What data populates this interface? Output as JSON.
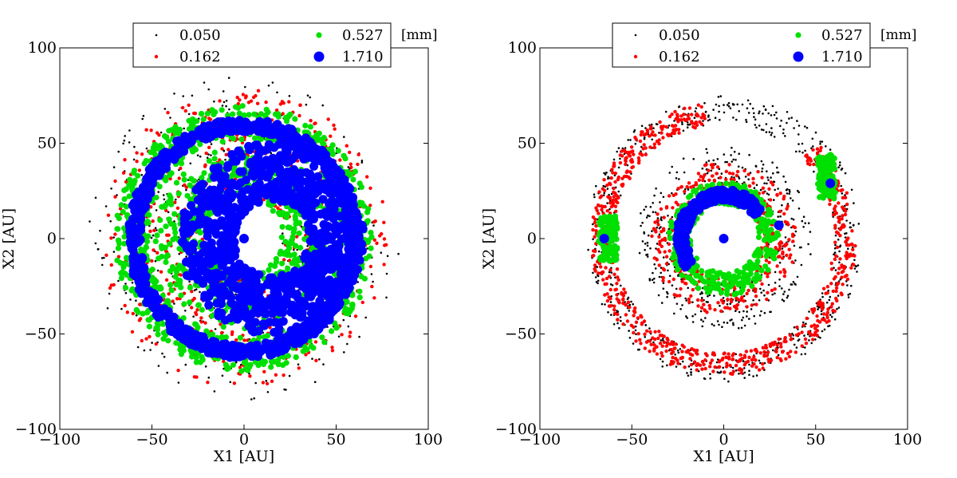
{
  "chart_data": [
    {
      "type": "scatter",
      "title": "",
      "xlabel": "X1 [AU]",
      "ylabel": "X2 [AU]",
      "xlim": [
        -100,
        100
      ],
      "ylim": [
        -100,
        100
      ],
      "xticks": [
        -100,
        -50,
        0,
        50,
        100
      ],
      "yticks": [
        -100,
        -50,
        0,
        50,
        100
      ],
      "xtick_labels": [
        "−100",
        "−50",
        "0",
        "50",
        "100"
      ],
      "ytick_labels": [
        "−100",
        "−50",
        "0",
        "50",
        "100"
      ],
      "grid": false,
      "legend_placement": "top-center",
      "legend_unit": "[mm]",
      "series": [
        {
          "name": "0.050",
          "color": "#000000",
          "marker_size_rank": 1,
          "structure": [
            {
              "shape": "disk-ring",
              "radius_min": 20,
              "radius_max": 85,
              "density": "sparse"
            }
          ]
        },
        {
          "name": "0.162",
          "color": "#ff0000",
          "marker_size_rank": 2,
          "structure": [
            {
              "shape": "ring",
              "radius_min": 22,
              "radius_max": 78,
              "density": "medium"
            }
          ]
        },
        {
          "name": "0.527",
          "color": "#00e000",
          "marker_size_rank": 3,
          "structure": [
            {
              "shape": "ring",
              "radius_min": 52,
              "radius_max": 70
            },
            {
              "shape": "ring",
              "radius_min": 20,
              "radius_max": 48
            }
          ]
        },
        {
          "name": "1.710",
          "color": "#0000ff",
          "marker_size_rank": 4,
          "structure": [
            {
              "shape": "ring",
              "radius_min": 56,
              "radius_max": 63
            },
            {
              "shape": "disk",
              "radius_min": 20,
              "radius_max": 50,
              "center": [
                15,
                0
              ]
            },
            {
              "shape": "point",
              "x": 0,
              "y": 0
            }
          ]
        }
      ]
    },
    {
      "type": "scatter",
      "title": "",
      "xlabel": "X1 [AU]",
      "ylabel": "X2 [AU]",
      "xlim": [
        -100,
        100
      ],
      "ylim": [
        -100,
        100
      ],
      "xticks": [
        -100,
        -50,
        0,
        50,
        100
      ],
      "yticks": [
        -100,
        -50,
        0,
        50,
        100
      ],
      "xtick_labels": [
        "−100",
        "−50",
        "0",
        "50",
        "100"
      ],
      "ytick_labels": [
        "−100",
        "−50",
        "0",
        "50",
        "100"
      ],
      "grid": false,
      "legend_placement": "top-center",
      "legend_unit": "[mm]",
      "series": [
        {
          "name": "0.050",
          "color": "#000000",
          "marker_size_rank": 1,
          "structure": [
            {
              "shape": "ring",
              "radius_min": 22,
              "radius_max": 48
            },
            {
              "shape": "ring",
              "radius_min": 60,
              "radius_max": 75,
              "density": "sparse"
            }
          ]
        },
        {
          "name": "0.162",
          "color": "#ff0000",
          "marker_size_rank": 2,
          "structure": [
            {
              "shape": "ring",
              "radius_min": 20,
              "radius_max": 40
            },
            {
              "shape": "arc",
              "radius_min": 60,
              "radius_max": 72
            }
          ]
        },
        {
          "name": "0.527",
          "color": "#00e000",
          "marker_size_rank": 3,
          "structure": [
            {
              "shape": "ring",
              "radius_min": 18,
              "radius_max": 30
            },
            {
              "shape": "clump",
              "x": -63,
              "y": 0
            },
            {
              "shape": "clump",
              "x": 56,
              "y": 32
            }
          ]
        },
        {
          "name": "1.710",
          "color": "#0000ff",
          "marker_size_rank": 4,
          "structure": [
            {
              "shape": "arc",
              "radius_min": 20,
              "radius_max": 26
            },
            {
              "shape": "point",
              "x": 0,
              "y": 0
            },
            {
              "shape": "point",
              "x": -65,
              "y": 0
            },
            {
              "shape": "point",
              "x": 58,
              "y": 29
            },
            {
              "shape": "point",
              "x": 30,
              "y": 7
            }
          ]
        }
      ]
    }
  ]
}
